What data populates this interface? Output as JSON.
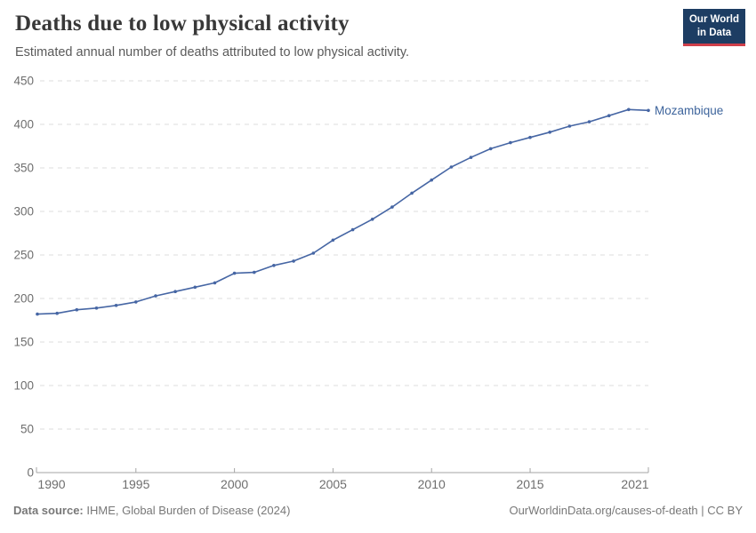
{
  "header": {
    "title": "Deaths due to low physical activity",
    "subtitle": "Estimated annual number of deaths attributed to low physical activity.",
    "logo_line1": "Our World",
    "logo_line2": "in Data"
  },
  "chart_data": {
    "type": "line",
    "title": "Deaths due to low physical activity",
    "series": [
      {
        "name": "Mozambique",
        "x": [
          1990,
          1991,
          1992,
          1993,
          1994,
          1995,
          1996,
          1997,
          1998,
          1999,
          2000,
          2001,
          2002,
          2003,
          2004,
          2005,
          2006,
          2007,
          2008,
          2009,
          2010,
          2011,
          2012,
          2013,
          2014,
          2015,
          2016,
          2017,
          2018,
          2019,
          2020,
          2021
        ],
        "values": [
          182,
          183,
          187,
          189,
          192,
          196,
          203,
          208,
          213,
          218,
          229,
          230,
          238,
          243,
          252,
          267,
          279,
          291,
          305,
          321,
          336,
          351,
          362,
          372,
          379,
          385,
          391,
          398,
          403,
          410,
          417,
          416
        ]
      }
    ],
    "xlabel": "",
    "ylabel": "",
    "xlim": [
      1990,
      2021
    ],
    "ylim": [
      0,
      450
    ],
    "yticks": [
      0,
      50,
      100,
      150,
      200,
      250,
      300,
      350,
      400,
      450
    ],
    "xticks": [
      1990,
      1995,
      2000,
      2005,
      2010,
      2015,
      2021
    ],
    "grid": true,
    "legend_position": "end-of-line-label",
    "colors": {
      "line": "#4666a4",
      "entity_label": "#3d649c",
      "grid": "#dddddd",
      "axis": "#a5a5a5",
      "tick_label": "#6e6e6e"
    }
  },
  "footer": {
    "source_label": "Data source:",
    "source_text": " IHME, Global Burden of Disease (2024)",
    "credit": "OurWorldinData.org/causes-of-death | CC BY"
  }
}
